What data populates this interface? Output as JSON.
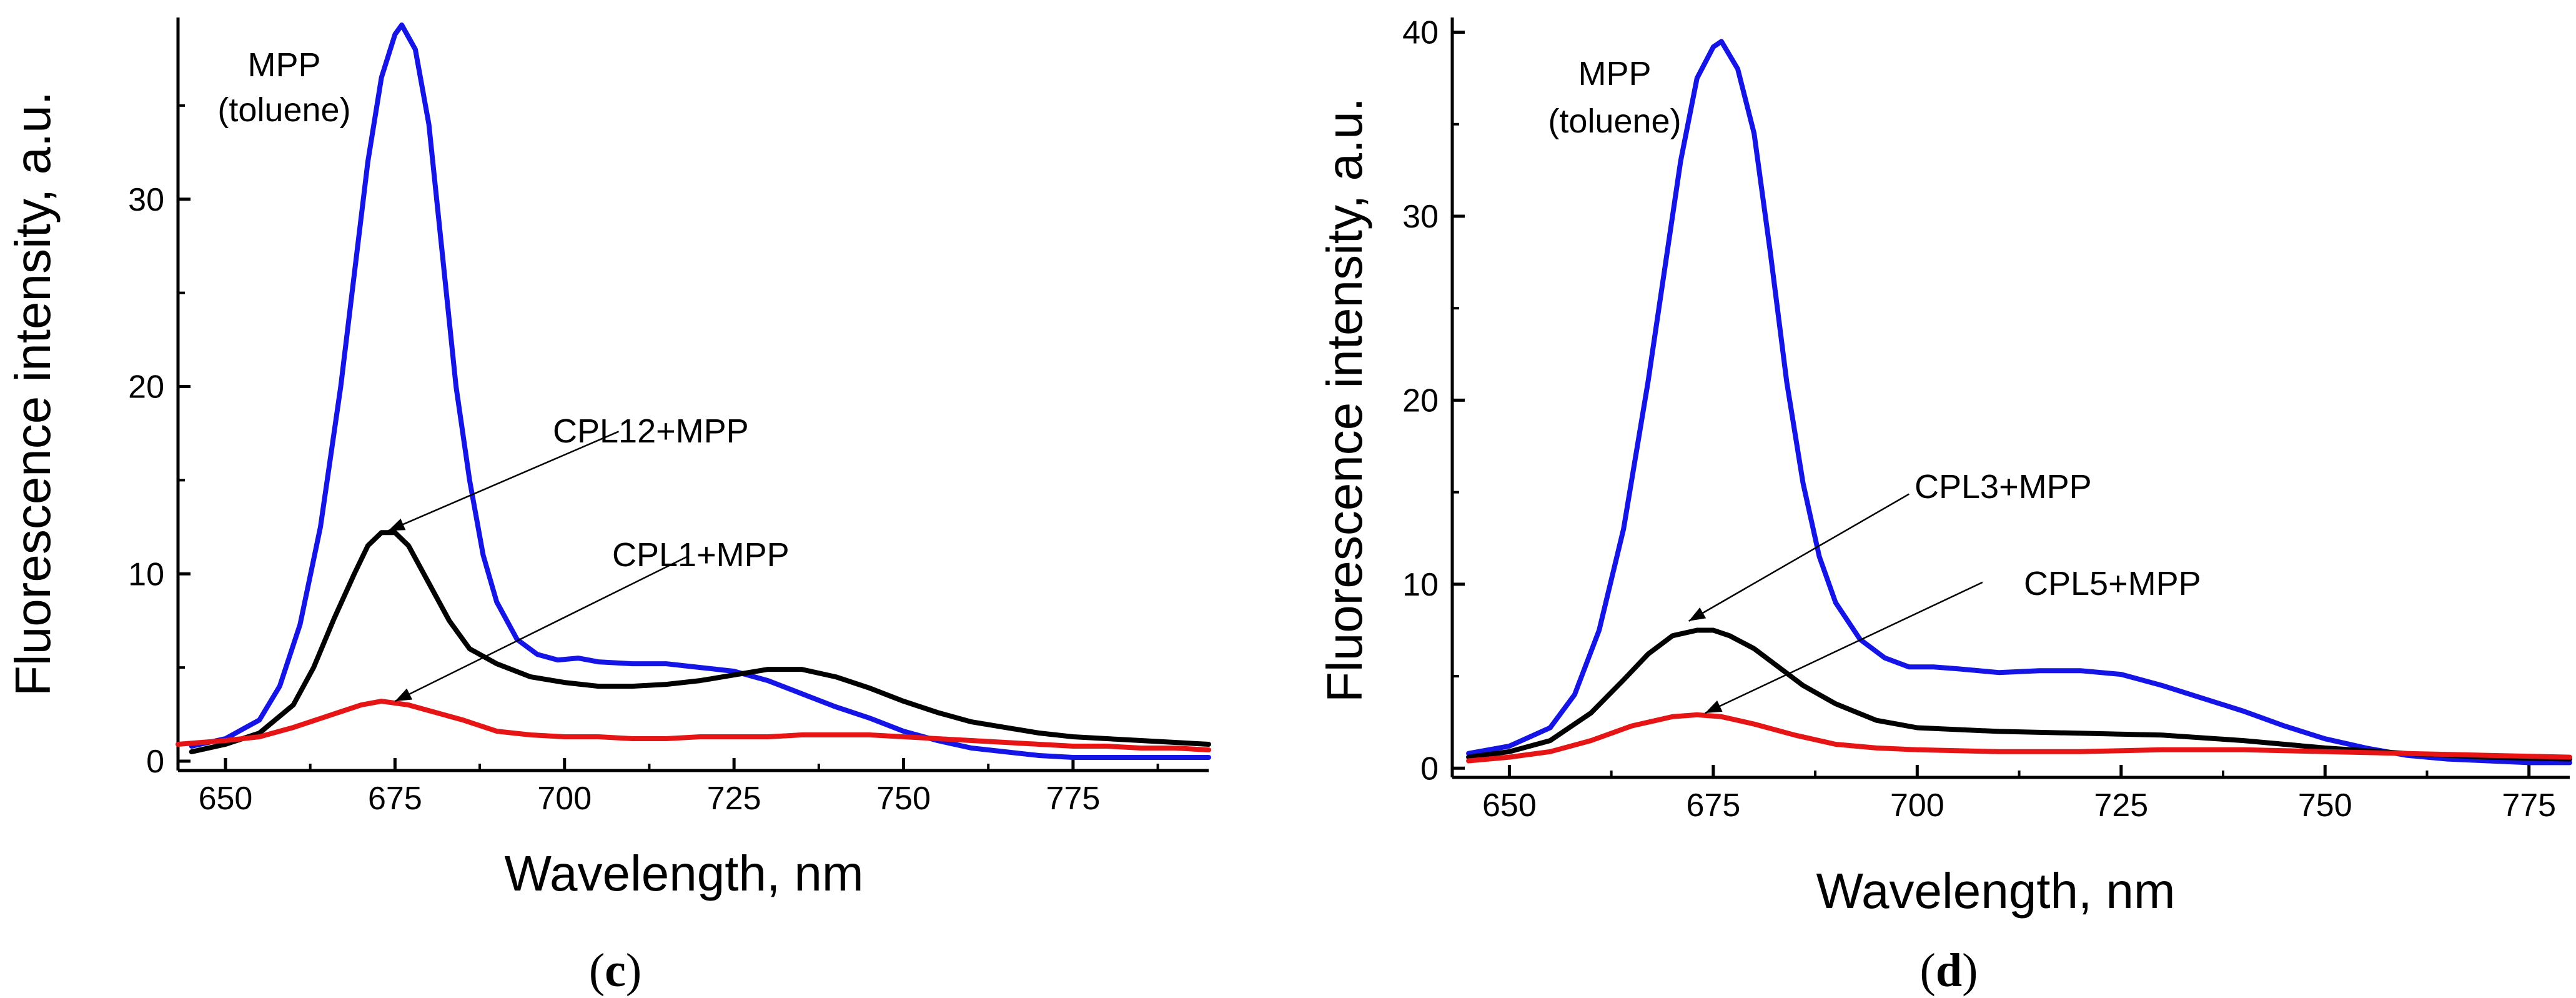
{
  "chart_data": [
    {
      "type": "line",
      "panel": "c",
      "panel_label": {
        "open": "(",
        "letter": "c",
        "close": ")"
      },
      "xlabel": "Wavelength, nm",
      "ylabel": "Fluorescence intensity, a.u.",
      "xlim": [
        643,
        795
      ],
      "ylim": [
        -0.5,
        39.7
      ],
      "xticks": [
        650,
        675,
        700,
        725,
        750,
        775
      ],
      "yticks": [
        0,
        10,
        20,
        30
      ],
      "annotations": {
        "title_lines": [
          "MPP",
          "(toluene)"
        ],
        "labels": [
          {
            "text": "CPL12+MPP",
            "series": "CPL12+MPP",
            "arrow_to": [
              674,
              12.3
            ],
            "anchor": [
              708,
              17.6
            ]
          },
          {
            "text": "CPL1+MPP",
            "series": "CPL1+MPP",
            "arrow_to": [
              675,
              3.2
            ],
            "anchor": [
              718,
              10.9
            ]
          }
        ]
      },
      "series": [
        {
          "name": "MPP (toluene)",
          "color": "#1414e6",
          "x": [
            645,
            650,
            655,
            658,
            661,
            664,
            667,
            669,
            671,
            673,
            675,
            676,
            678,
            680,
            682,
            684,
            686,
            688,
            690,
            693,
            696,
            699,
            702,
            705,
            710,
            715,
            720,
            725,
            730,
            735,
            740,
            745,
            750,
            755,
            760,
            765,
            770,
            775,
            780,
            785,
            790,
            795
          ],
          "y": [
            0.8,
            1.2,
            2.2,
            4.0,
            7.3,
            12.5,
            20.0,
            26.0,
            32.0,
            36.5,
            38.8,
            39.3,
            38.0,
            34.0,
            27.0,
            20.0,
            15.0,
            11.0,
            8.5,
            6.5,
            5.7,
            5.4,
            5.5,
            5.3,
            5.2,
            5.2,
            5.0,
            4.8,
            4.3,
            3.6,
            2.9,
            2.3,
            1.6,
            1.1,
            0.7,
            0.5,
            0.3,
            0.2,
            0.2,
            0.2,
            0.2,
            0.2
          ]
        },
        {
          "name": "CPL12+MPP",
          "color": "#000000",
          "x": [
            645,
            650,
            655,
            660,
            663,
            666,
            669,
            671,
            673,
            675,
            677,
            680,
            683,
            686,
            690,
            695,
            700,
            705,
            710,
            715,
            720,
            725,
            730,
            735,
            740,
            745,
            750,
            755,
            760,
            765,
            770,
            775,
            780,
            785,
            790,
            795
          ],
          "y": [
            0.5,
            0.9,
            1.5,
            3.0,
            5.0,
            7.6,
            10.0,
            11.5,
            12.2,
            12.2,
            11.5,
            9.5,
            7.5,
            6.0,
            5.2,
            4.5,
            4.2,
            4.0,
            4.0,
            4.1,
            4.3,
            4.6,
            4.9,
            4.9,
            4.5,
            3.9,
            3.2,
            2.6,
            2.1,
            1.8,
            1.5,
            1.3,
            1.2,
            1.1,
            1.0,
            0.9
          ]
        },
        {
          "name": "CPL1+MPP",
          "color": "#e61414",
          "x": [
            643,
            650,
            655,
            660,
            665,
            670,
            673,
            677,
            680,
            685,
            690,
            695,
            700,
            705,
            710,
            715,
            720,
            725,
            730,
            735,
            740,
            745,
            750,
            755,
            760,
            765,
            770,
            775,
            780,
            785,
            790,
            795
          ],
          "y": [
            0.9,
            1.1,
            1.3,
            1.8,
            2.4,
            3.0,
            3.2,
            3.0,
            2.7,
            2.2,
            1.6,
            1.4,
            1.3,
            1.3,
            1.2,
            1.2,
            1.3,
            1.3,
            1.3,
            1.4,
            1.4,
            1.4,
            1.3,
            1.2,
            1.1,
            1.0,
            0.9,
            0.8,
            0.8,
            0.7,
            0.7,
            0.6
          ]
        }
      ]
    },
    {
      "type": "line",
      "panel": "d",
      "panel_label": {
        "open": "(",
        "letter": "d",
        "close": ")"
      },
      "xlabel": "Wavelength, nm",
      "ylabel": "Fluorescence intensity, a.u.",
      "xlim": [
        643,
        780
      ],
      "ylim": [
        -0.5,
        40.8
      ],
      "xticks": [
        650,
        675,
        700,
        725,
        750,
        775
      ],
      "yticks": [
        0,
        10,
        20,
        30,
        40
      ],
      "annotations": {
        "title_lines": [
          "MPP",
          "(toluene)"
        ],
        "labels": [
          {
            "text": "CPL3+MPP",
            "series": "CPL3+MPP",
            "arrow_to": [
              672,
              8.0
            ],
            "anchor": [
              699,
              14.9
            ]
          },
          {
            "text": "CPL5+MPP",
            "series": "CPL5+MPP",
            "arrow_to": [
              674,
              3.0
            ],
            "anchor": [
              708,
              10.1
            ]
          }
        ]
      },
      "series": [
        {
          "name": "MPP (toluene)",
          "color": "#1414e6",
          "x": [
            645,
            650,
            655,
            658,
            661,
            664,
            667,
            669,
            671,
            673,
            675,
            676,
            678,
            680,
            682,
            684,
            686,
            688,
            690,
            693,
            696,
            699,
            702,
            705,
            710,
            715,
            720,
            725,
            730,
            735,
            740,
            745,
            750,
            755,
            760,
            765,
            770,
            775,
            780
          ],
          "y": [
            0.8,
            1.2,
            2.2,
            4.0,
            7.5,
            13.0,
            21.0,
            27.0,
            33.0,
            37.5,
            39.2,
            39.5,
            38.0,
            34.5,
            28.0,
            21.0,
            15.5,
            11.5,
            9.0,
            7.0,
            6.0,
            5.5,
            5.5,
            5.4,
            5.2,
            5.3,
            5.3,
            5.1,
            4.5,
            3.8,
            3.1,
            2.3,
            1.6,
            1.1,
            0.7,
            0.5,
            0.4,
            0.3,
            0.3
          ]
        },
        {
          "name": "CPL3+MPP",
          "color": "#000000",
          "x": [
            645,
            650,
            655,
            660,
            664,
            667,
            670,
            673,
            675,
            677,
            680,
            683,
            686,
            690,
            695,
            700,
            710,
            720,
            730,
            740,
            750,
            760,
            770,
            780
          ],
          "y": [
            0.6,
            0.9,
            1.5,
            3.0,
            4.8,
            6.2,
            7.2,
            7.5,
            7.5,
            7.2,
            6.5,
            5.5,
            4.5,
            3.5,
            2.6,
            2.2,
            2.0,
            1.9,
            1.8,
            1.5,
            1.1,
            0.8,
            0.6,
            0.5
          ]
        },
        {
          "name": "CPL5+MPP",
          "color": "#e61414",
          "x": [
            645,
            650,
            655,
            660,
            665,
            670,
            673,
            676,
            680,
            685,
            690,
            695,
            700,
            710,
            720,
            730,
            740,
            750,
            760,
            770,
            780
          ],
          "y": [
            0.4,
            0.6,
            0.9,
            1.5,
            2.3,
            2.8,
            2.9,
            2.8,
            2.4,
            1.8,
            1.3,
            1.1,
            1.0,
            0.9,
            0.9,
            1.0,
            1.0,
            0.9,
            0.8,
            0.7,
            0.6
          ]
        }
      ]
    }
  ]
}
